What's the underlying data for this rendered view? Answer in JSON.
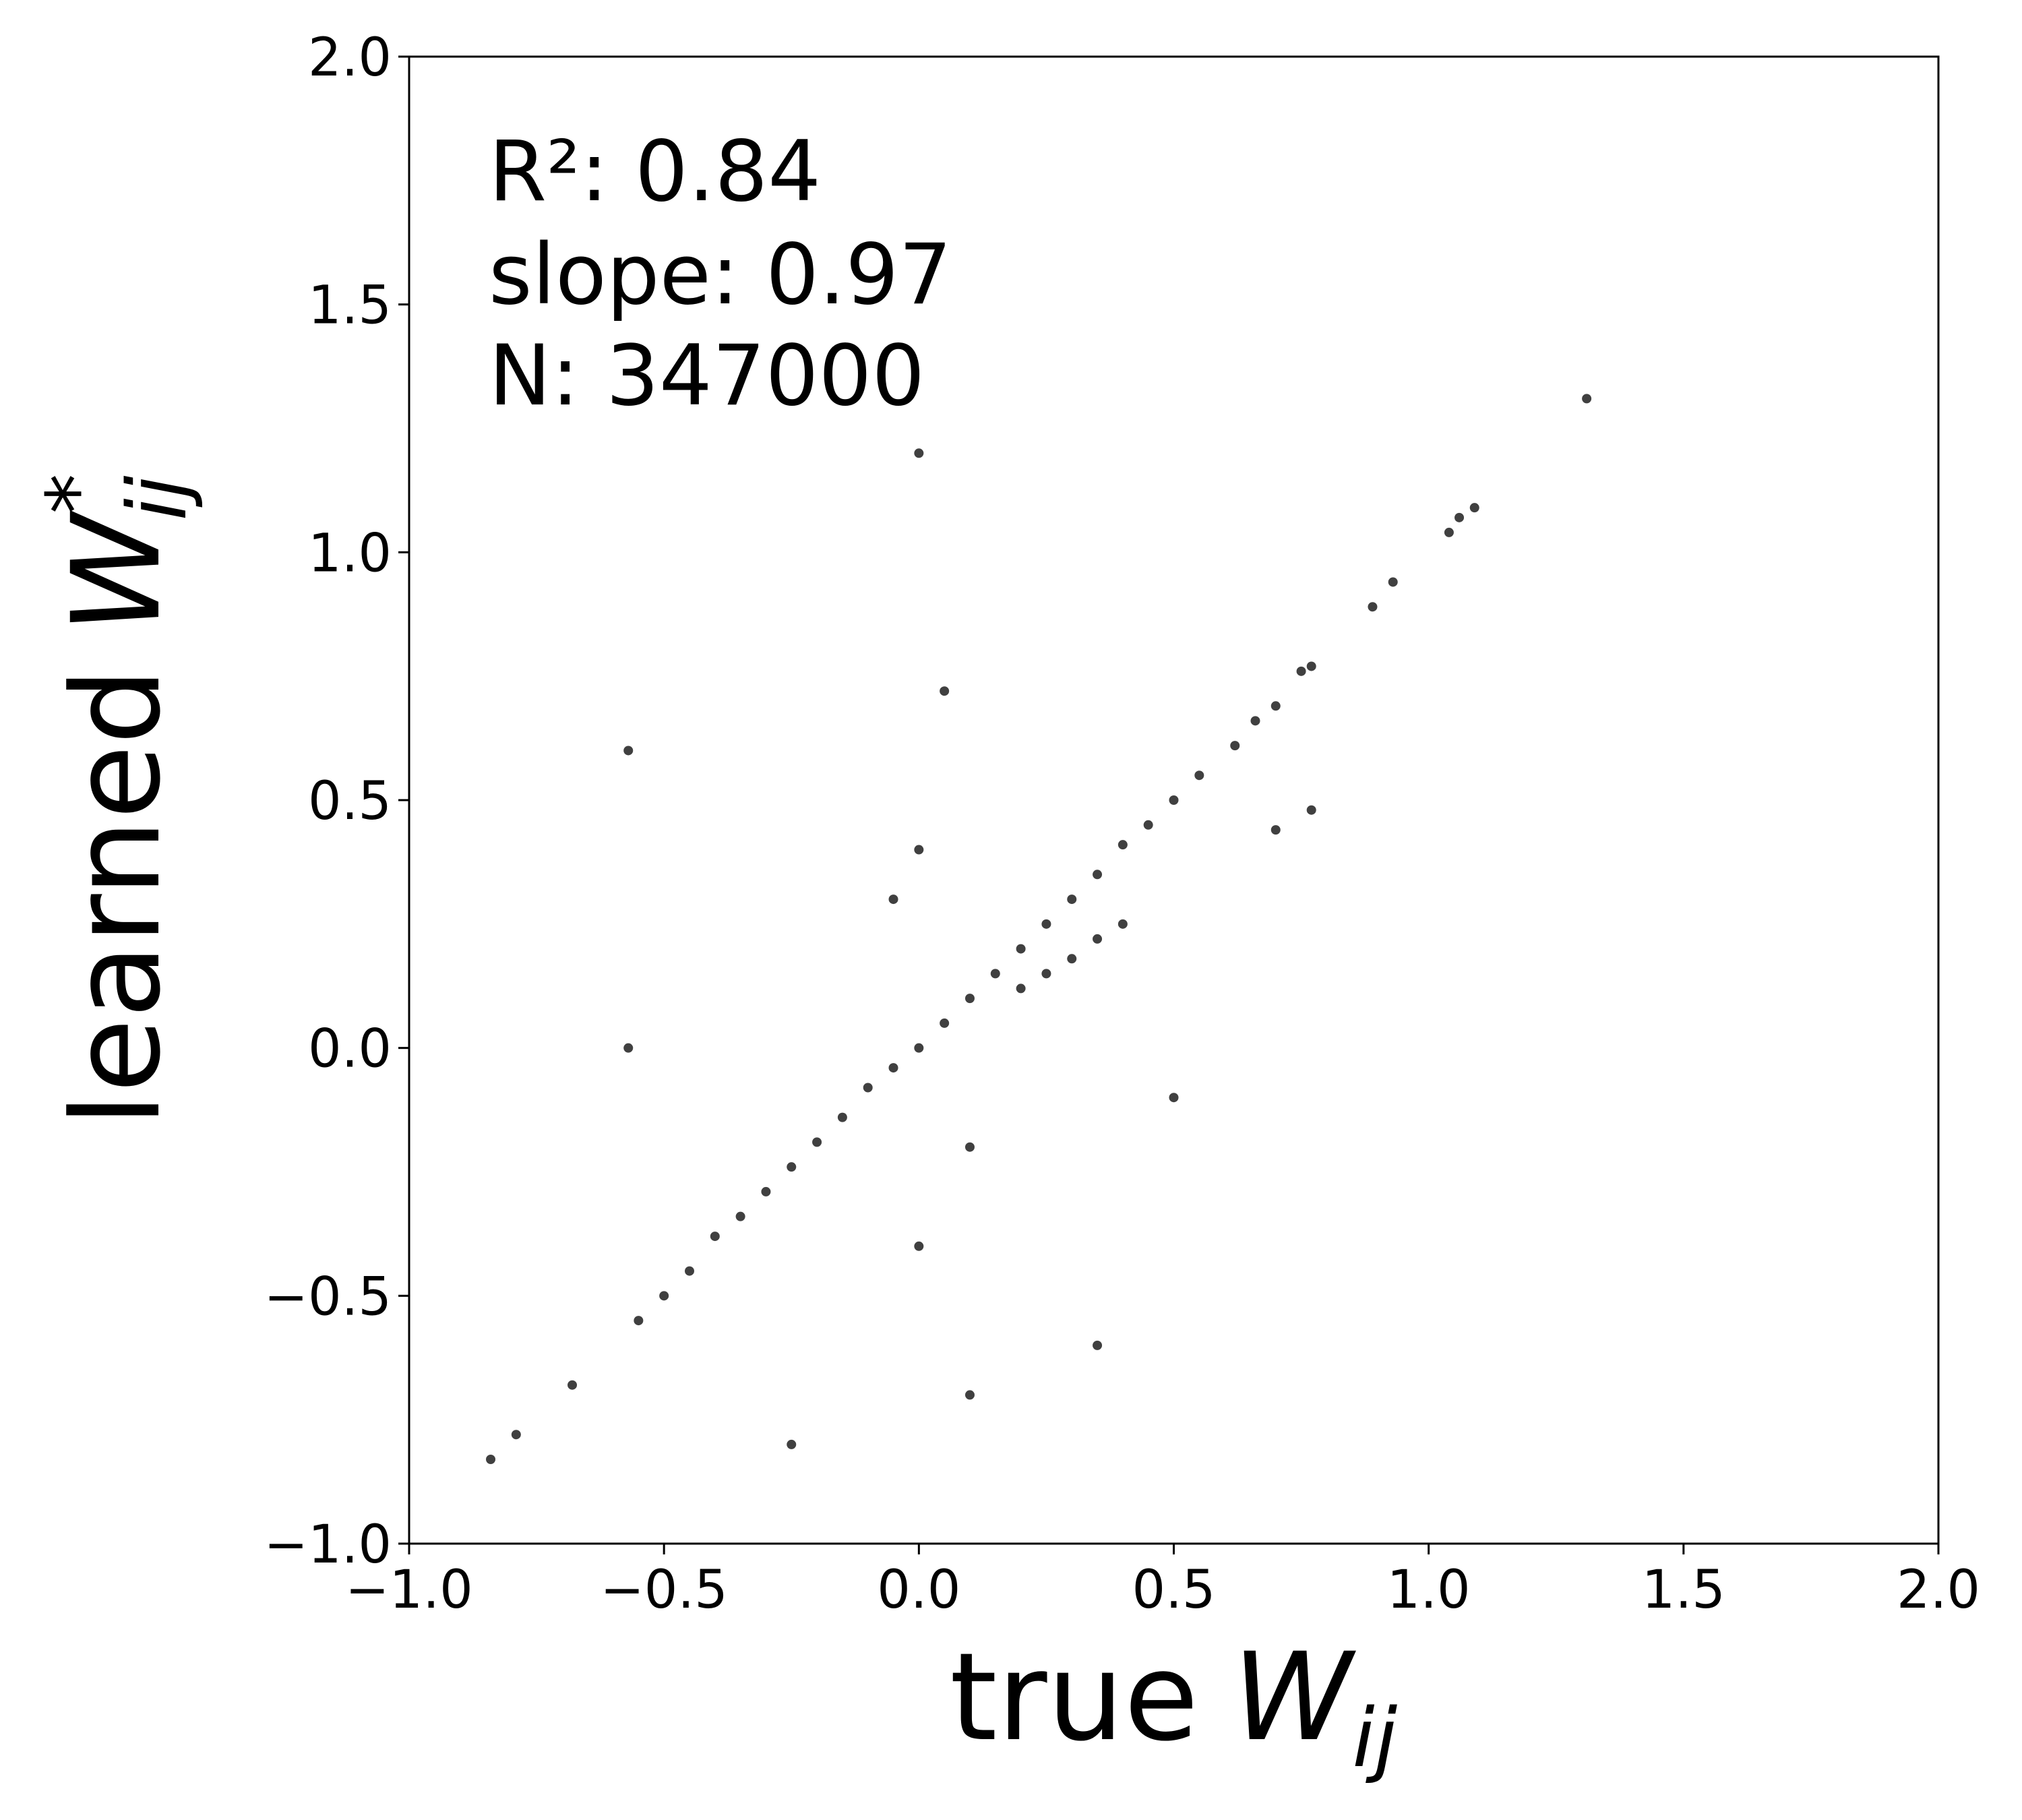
{
  "chart_data": {
    "type": "scatter",
    "x_label": {
      "text": "true",
      "symbol": "W",
      "subscript": "ij"
    },
    "y_label": {
      "text": "learned",
      "symbol": "W",
      "superscript": "*",
      "subscript": "ij"
    },
    "annotations": [
      "R²: 0.84",
      "slope: 0.97",
      "N: 347000"
    ],
    "xlim": [
      -1,
      2
    ],
    "ylim": [
      -1,
      2
    ],
    "xticks": [
      {
        "value": -1,
        "label": "−1.0"
      },
      {
        "value": -0.5,
        "label": "−0.5"
      },
      {
        "value": 0,
        "label": "0.0"
      },
      0.5,
      {
        "value": 1,
        "label": "1.0"
      },
      1.5,
      {
        "value": 2,
        "label": "2.0"
      }
    ],
    "yticks": [
      {
        "value": -1,
        "label": "−1.0"
      },
      {
        "value": -0.5,
        "label": "−0.5"
      },
      {
        "value": 0,
        "label": "0.0"
      },
      0.5,
      {
        "value": 1,
        "label": "1.0"
      },
      1.5,
      {
        "value": 2,
        "label": "2.0"
      }
    ],
    "color": "#000000",
    "x": [
      -0.84,
      -0.79,
      -0.68,
      -0.55,
      -0.5,
      -0.45,
      -0.4,
      -0.35,
      -0.3,
      -0.25,
      -0.2,
      -0.15,
      -0.1,
      -0.05,
      0,
      0.05,
      0.1,
      0.15,
      0.2,
      0.25,
      0.3,
      0.35,
      0.4,
      0.45,
      0.5,
      0.55,
      0.62,
      0.66,
      0.7,
      0.75,
      0.77,
      0.89,
      0.93,
      1.04,
      1.06,
      1.09,
      1.31,
      0.2,
      0.25,
      0.3,
      0.35,
      0.4,
      0.7,
      0.77,
      0.05,
      0,
      0,
      -0.05,
      0.1,
      -0.57,
      -0.57,
      0,
      0.35,
      -0.25,
      0.1,
      0.5
    ],
    "y": [
      -0.83,
      -0.78,
      -0.68,
      -0.55,
      -0.5,
      -0.45,
      -0.38,
      -0.34,
      -0.29,
      -0.24,
      -0.19,
      -0.14,
      -0.08,
      -0.04,
      0,
      0.05,
      0.1,
      0.15,
      0.2,
      0.25,
      0.3,
      0.35,
      0.41,
      0.45,
      0.5,
      0.55,
      0.61,
      0.66,
      0.69,
      0.76,
      0.77,
      0.89,
      0.94,
      1.04,
      1.07,
      1.09,
      1.31,
      0.12,
      0.15,
      0.18,
      0.22,
      0.25,
      0.44,
      0.48,
      0.72,
      0.4,
      -0.4,
      0.3,
      -0.2,
      0.6,
      0,
      1.2,
      -0.6,
      -0.8,
      -0.7,
      -0.1
    ]
  }
}
